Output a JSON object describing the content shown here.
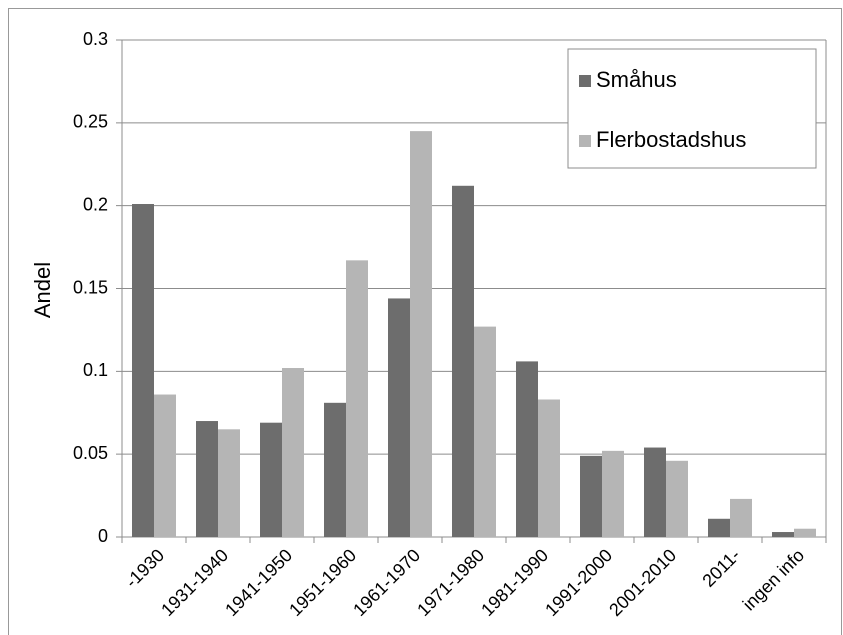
{
  "chart_data": {
    "type": "bar",
    "y_label": "Andel",
    "categories": [
      "-1930",
      "1931-1940",
      "1941-1950",
      "1951-1960",
      "1961-1970",
      "1971-1980",
      "1981-1990",
      "1991-2000",
      "2001-2010",
      "2011-",
      "ingen info"
    ],
    "series": [
      {
        "name": "Småhus",
        "color": "#6d6d6d",
        "values": [
          0.201,
          0.07,
          0.069,
          0.081,
          0.144,
          0.212,
          0.106,
          0.049,
          0.054,
          0.011,
          0.003
        ]
      },
      {
        "name": "Flerbostadshus",
        "color": "#b5b5b5",
        "values": [
          0.086,
          0.065,
          0.102,
          0.167,
          0.245,
          0.127,
          0.083,
          0.052,
          0.046,
          0.023,
          0.005
        ]
      }
    ],
    "ylim": [
      0,
      0.3
    ],
    "yticks": [
      0,
      0.05,
      0.1,
      0.15,
      0.2,
      0.25,
      0.3
    ],
    "grid": true,
    "legend": "upper right"
  }
}
